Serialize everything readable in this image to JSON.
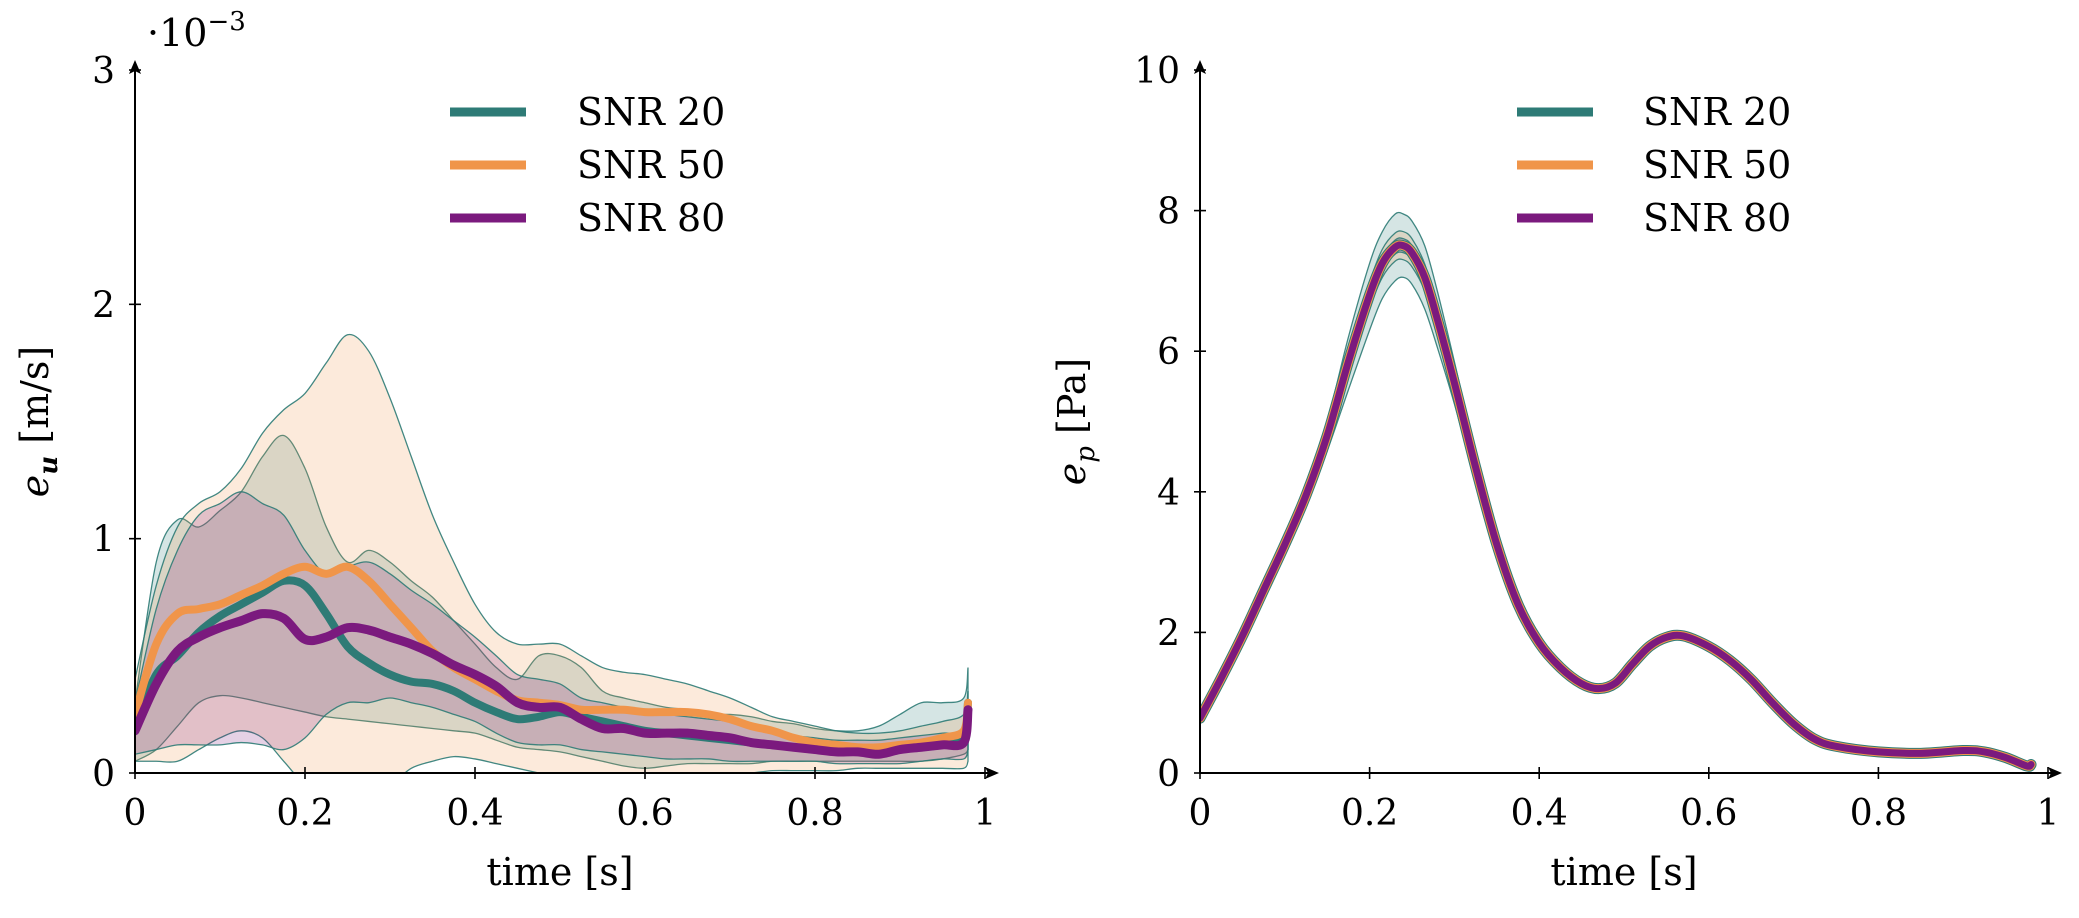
{
  "colors": {
    "SNR 20": "#2e7b76",
    "SNR 50": "#f0954a",
    "SNR 80": "#7b1a7e",
    "axis": "#000000"
  },
  "chart_data": [
    {
      "type": "line",
      "title": "",
      "xlabel": "time [s]",
      "ylabel_main": "e",
      "ylabel_sub": "u",
      "ylabel_unit": "[m/s]",
      "scale_label": "·10",
      "scale_exp": "−3",
      "xlim": [
        0,
        1
      ],
      "ylim": [
        0,
        3
      ],
      "xticks": [
        0,
        0.2,
        0.4,
        0.6,
        0.8,
        1
      ],
      "xtick_labels": [
        "0",
        "0.2",
        "0.4",
        "0.6",
        "0.8",
        "1"
      ],
      "yticks": [
        0,
        1,
        2,
        3
      ],
      "ytick_labels": [
        "0",
        "1",
        "2",
        "3"
      ],
      "legend": "top-center",
      "x": [
        0,
        0.025,
        0.05,
        0.075,
        0.1,
        0.125,
        0.15,
        0.175,
        0.2,
        0.225,
        0.25,
        0.275,
        0.3,
        0.325,
        0.35,
        0.375,
        0.4,
        0.425,
        0.45,
        0.475,
        0.5,
        0.525,
        0.55,
        0.575,
        0.6,
        0.625,
        0.65,
        0.675,
        0.7,
        0.725,
        0.75,
        0.775,
        0.8,
        0.825,
        0.85,
        0.875,
        0.9,
        0.925,
        0.95,
        0.975,
        0.98
      ],
      "series": [
        {
          "name": "SNR 20",
          "values": [
            0.2,
            0.42,
            0.5,
            0.6,
            0.67,
            0.72,
            0.77,
            0.82,
            0.8,
            0.68,
            0.54,
            0.47,
            0.42,
            0.39,
            0.38,
            0.35,
            0.3,
            0.26,
            0.23,
            0.24,
            0.26,
            0.24,
            0.22,
            0.2,
            0.18,
            0.17,
            0.16,
            0.15,
            0.14,
            0.13,
            0.12,
            0.11,
            0.1,
            0.1,
            0.09,
            0.09,
            0.1,
            0.11,
            0.12,
            0.15,
            0.3
          ],
          "band_low": [
            0.05,
            0.1,
            0.2,
            0.3,
            0.33,
            0.32,
            0.3,
            0.28,
            0.26,
            0.24,
            0.23,
            0.22,
            0.21,
            0.2,
            0.19,
            0.18,
            0.17,
            0.14,
            0.11,
            0.1,
            0.09,
            0.07,
            0.05,
            0.03,
            0.02,
            0.03,
            0.04,
            0.04,
            0.04,
            0.04,
            0.05,
            0.05,
            0.05,
            0.05,
            0.05,
            0.05,
            0.05,
            0.05,
            0.06,
            0.08,
            0.1
          ],
          "band_high": [
            0.3,
            0.9,
            1.08,
            1.05,
            1.12,
            1.2,
            1.35,
            1.44,
            1.3,
            1.05,
            0.9,
            0.95,
            0.9,
            0.82,
            0.75,
            0.65,
            0.55,
            0.45,
            0.4,
            0.5,
            0.5,
            0.45,
            0.35,
            0.32,
            0.3,
            0.28,
            0.27,
            0.25,
            0.25,
            0.24,
            0.22,
            0.21,
            0.19,
            0.18,
            0.18,
            0.2,
            0.25,
            0.3,
            0.3,
            0.32,
            0.45
          ]
        },
        {
          "name": "SNR 50",
          "values": [
            0.25,
            0.55,
            0.68,
            0.7,
            0.72,
            0.76,
            0.8,
            0.85,
            0.88,
            0.85,
            0.88,
            0.82,
            0.72,
            0.62,
            0.52,
            0.45,
            0.4,
            0.35,
            0.31,
            0.3,
            0.29,
            0.27,
            0.27,
            0.27,
            0.26,
            0.26,
            0.26,
            0.25,
            0.23,
            0.2,
            0.18,
            0.15,
            0.13,
            0.12,
            0.11,
            0.11,
            0.12,
            0.13,
            0.15,
            0.18,
            0.3
          ],
          "band_low": [
            0.05,
            0.05,
            0.05,
            0.1,
            0.15,
            0.18,
            0.15,
            0.05,
            -0.05,
            -0.1,
            -0.1,
            -0.07,
            -0.05,
            0.02,
            0.05,
            0.07,
            0.06,
            0.04,
            0.02,
            0.0,
            -0.02,
            -0.05,
            -0.06,
            -0.05,
            -0.05,
            -0.03,
            -0.02,
            -0.01,
            0.0,
            0.0,
            0.01,
            0.01,
            0.01,
            0.01,
            0.02,
            0.02,
            0.02,
            0.02,
            0.02,
            0.02,
            0.05
          ],
          "band_high": [
            0.4,
            0.8,
            1.05,
            1.15,
            1.2,
            1.3,
            1.45,
            1.55,
            1.62,
            1.75,
            1.87,
            1.8,
            1.6,
            1.35,
            1.1,
            0.9,
            0.72,
            0.6,
            0.55,
            0.55,
            0.55,
            0.5,
            0.45,
            0.43,
            0.42,
            0.4,
            0.38,
            0.35,
            0.32,
            0.28,
            0.24,
            0.22,
            0.2,
            0.18,
            0.17,
            0.17,
            0.18,
            0.2,
            0.22,
            0.25,
            0.35
          ]
        },
        {
          "name": "SNR 80",
          "values": [
            0.18,
            0.38,
            0.52,
            0.58,
            0.62,
            0.65,
            0.68,
            0.66,
            0.57,
            0.58,
            0.62,
            0.61,
            0.58,
            0.55,
            0.51,
            0.46,
            0.42,
            0.37,
            0.3,
            0.28,
            0.28,
            0.23,
            0.19,
            0.19,
            0.17,
            0.17,
            0.17,
            0.16,
            0.15,
            0.13,
            0.12,
            0.11,
            0.1,
            0.09,
            0.09,
            0.08,
            0.1,
            0.11,
            0.12,
            0.13,
            0.27
          ],
          "band_low": [
            0.08,
            0.1,
            0.12,
            0.12,
            0.12,
            0.13,
            0.12,
            0.1,
            0.15,
            0.25,
            0.3,
            0.3,
            0.32,
            0.3,
            0.28,
            0.25,
            0.22,
            0.17,
            0.13,
            0.12,
            0.12,
            0.1,
            0.09,
            0.08,
            0.07,
            0.06,
            0.06,
            0.06,
            0.05,
            0.05,
            0.05,
            0.05,
            0.05,
            0.04,
            0.04,
            0.04,
            0.04,
            0.05,
            0.06,
            0.06,
            0.1
          ],
          "band_high": [
            0.3,
            0.7,
            0.95,
            1.1,
            1.15,
            1.2,
            1.15,
            1.1,
            0.95,
            0.85,
            0.88,
            0.9,
            0.85,
            0.78,
            0.72,
            0.65,
            0.58,
            0.5,
            0.42,
            0.4,
            0.38,
            0.32,
            0.3,
            0.28,
            0.26,
            0.25,
            0.24,
            0.23,
            0.22,
            0.2,
            0.18,
            0.16,
            0.15,
            0.14,
            0.14,
            0.14,
            0.15,
            0.16,
            0.17,
            0.18,
            0.3
          ]
        }
      ]
    },
    {
      "type": "line",
      "title": "",
      "xlabel": "time [s]",
      "ylabel_main": "e",
      "ylabel_sub": "p",
      "ylabel_unit": "[Pa]",
      "xlim": [
        0,
        1
      ],
      "ylim": [
        0,
        10
      ],
      "xticks": [
        0,
        0.2,
        0.4,
        0.6,
        0.8,
        1
      ],
      "xtick_labels": [
        "0",
        "0.2",
        "0.4",
        "0.6",
        "0.8",
        "1"
      ],
      "yticks": [
        0,
        2,
        4,
        6,
        8,
        10
      ],
      "ytick_labels": [
        "0",
        "2",
        "4",
        "6",
        "8",
        "10"
      ],
      "legend": "top-center",
      "x": [
        0,
        0.025,
        0.05,
        0.075,
        0.1,
        0.125,
        0.15,
        0.175,
        0.2,
        0.215,
        0.23,
        0.24,
        0.25,
        0.265,
        0.28,
        0.3,
        0.325,
        0.35,
        0.375,
        0.4,
        0.425,
        0.45,
        0.47,
        0.49,
        0.51,
        0.53,
        0.55,
        0.57,
        0.6,
        0.625,
        0.65,
        0.675,
        0.7,
        0.725,
        0.75,
        0.8,
        0.85,
        0.9,
        0.925,
        0.95,
        0.975,
        0.98
      ],
      "series": [
        {
          "name": "SNR 20",
          "values": [
            0.78,
            1.35,
            1.95,
            2.6,
            3.25,
            3.95,
            4.8,
            5.85,
            6.8,
            7.25,
            7.48,
            7.5,
            7.4,
            7.05,
            6.45,
            5.55,
            4.35,
            3.25,
            2.4,
            1.85,
            1.5,
            1.27,
            1.2,
            1.28,
            1.55,
            1.8,
            1.93,
            1.95,
            1.8,
            1.6,
            1.33,
            1.0,
            0.7,
            0.48,
            0.38,
            0.3,
            0.28,
            0.32,
            0.3,
            0.22,
            0.1,
            0.12
          ],
          "band_low": [
            0.72,
            1.28,
            1.88,
            2.52,
            3.15,
            3.8,
            4.58,
            5.45,
            6.3,
            6.75,
            7.0,
            7.05,
            6.95,
            6.6,
            6.05,
            5.25,
            4.15,
            3.12,
            2.32,
            1.8,
            1.46,
            1.23,
            1.16,
            1.24,
            1.5,
            1.75,
            1.88,
            1.9,
            1.75,
            1.56,
            1.3,
            0.97,
            0.68,
            0.46,
            0.36,
            0.28,
            0.26,
            0.3,
            0.28,
            0.2,
            0.08,
            0.1
          ],
          "band_high": [
            0.84,
            1.42,
            2.02,
            2.68,
            3.35,
            4.1,
            5.0,
            6.2,
            7.25,
            7.7,
            7.95,
            7.95,
            7.85,
            7.5,
            6.85,
            5.85,
            4.55,
            3.38,
            2.48,
            1.9,
            1.54,
            1.31,
            1.24,
            1.32,
            1.6,
            1.85,
            1.98,
            2.0,
            1.85,
            1.64,
            1.36,
            1.03,
            0.72,
            0.5,
            0.4,
            0.32,
            0.3,
            0.34,
            0.32,
            0.24,
            0.12,
            0.14
          ]
        },
        {
          "name": "SNR 50",
          "values": [
            0.78,
            1.35,
            1.95,
            2.6,
            3.25,
            3.95,
            4.8,
            5.85,
            6.8,
            7.25,
            7.48,
            7.5,
            7.4,
            7.05,
            6.45,
            5.55,
            4.35,
            3.25,
            2.4,
            1.85,
            1.5,
            1.27,
            1.2,
            1.28,
            1.55,
            1.8,
            1.93,
            1.95,
            1.8,
            1.6,
            1.33,
            1.0,
            0.7,
            0.48,
            0.38,
            0.3,
            0.28,
            0.32,
            0.3,
            0.22,
            0.1,
            0.12
          ],
          "band_low": [
            0.76,
            1.33,
            1.93,
            2.58,
            3.22,
            3.9,
            4.73,
            5.72,
            6.62,
            7.05,
            7.28,
            7.3,
            7.2,
            6.86,
            6.28,
            5.44,
            4.3,
            3.22,
            2.38,
            1.84,
            1.49,
            1.26,
            1.19,
            1.27,
            1.54,
            1.79,
            1.92,
            1.94,
            1.79,
            1.59,
            1.32,
            0.99,
            0.69,
            0.47,
            0.37,
            0.29,
            0.27,
            0.31,
            0.29,
            0.21,
            0.09,
            0.11
          ],
          "band_high": [
            0.8,
            1.37,
            1.97,
            2.62,
            3.28,
            4.0,
            4.87,
            5.98,
            6.98,
            7.45,
            7.68,
            7.7,
            7.6,
            7.24,
            6.62,
            5.66,
            4.4,
            3.28,
            2.42,
            1.86,
            1.51,
            1.28,
            1.21,
            1.29,
            1.56,
            1.81,
            1.94,
            1.96,
            1.81,
            1.61,
            1.34,
            1.01,
            0.71,
            0.49,
            0.39,
            0.31,
            0.29,
            0.33,
            0.31,
            0.23,
            0.11,
            0.13
          ]
        },
        {
          "name": "SNR 80",
          "values": [
            0.78,
            1.35,
            1.95,
            2.6,
            3.25,
            3.95,
            4.8,
            5.85,
            6.8,
            7.25,
            7.48,
            7.5,
            7.4,
            7.05,
            6.45,
            5.55,
            4.35,
            3.25,
            2.4,
            1.85,
            1.5,
            1.27,
            1.2,
            1.28,
            1.55,
            1.8,
            1.93,
            1.95,
            1.8,
            1.6,
            1.33,
            1.0,
            0.7,
            0.48,
            0.38,
            0.3,
            0.28,
            0.32,
            0.3,
            0.22,
            0.1,
            0.12
          ],
          "band_low": [
            0.77,
            1.34,
            1.94,
            2.59,
            3.24,
            3.93,
            4.77,
            5.8,
            6.72,
            7.16,
            7.38,
            7.4,
            7.3,
            6.96,
            6.37,
            5.5,
            4.33,
            3.24,
            2.39,
            1.85,
            1.5,
            1.27,
            1.2,
            1.28,
            1.55,
            1.8,
            1.93,
            1.95,
            1.8,
            1.6,
            1.33,
            1.0,
            0.7,
            0.48,
            0.38,
            0.3,
            0.28,
            0.32,
            0.3,
            0.22,
            0.1,
            0.12
          ],
          "band_high": [
            0.79,
            1.36,
            1.96,
            2.61,
            3.26,
            3.97,
            4.83,
            5.9,
            6.88,
            7.34,
            7.58,
            7.6,
            7.5,
            7.14,
            6.53,
            5.6,
            4.37,
            3.26,
            2.41,
            1.86,
            1.51,
            1.28,
            1.21,
            1.29,
            1.56,
            1.81,
            1.94,
            1.96,
            1.81,
            1.61,
            1.34,
            1.01,
            0.71,
            0.49,
            0.39,
            0.31,
            0.29,
            0.33,
            0.31,
            0.23,
            0.11,
            0.13
          ]
        }
      ]
    }
  ]
}
